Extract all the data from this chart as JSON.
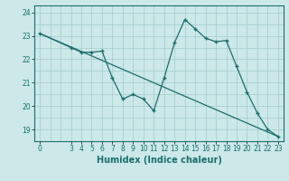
{
  "xlabel": "Humidex (Indice chaleur)",
  "ylabel": "",
  "bg_color": "#cce8e8",
  "grid_color": "#aacfcf",
  "line_color": "#1a6e6a",
  "xlim": [
    -0.5,
    23.5
  ],
  "ylim": [
    18.5,
    24.3
  ],
  "yticks": [
    19,
    20,
    21,
    22,
    23,
    24
  ],
  "xticks": [
    0,
    3,
    4,
    5,
    6,
    7,
    8,
    9,
    10,
    11,
    12,
    13,
    14,
    15,
    16,
    17,
    18,
    19,
    20,
    21,
    22,
    23
  ],
  "curve_x": [
    0,
    3,
    4,
    5,
    6,
    7,
    8,
    9,
    10,
    11,
    12,
    13,
    14,
    15,
    16,
    17,
    18,
    19,
    20,
    21,
    22,
    23
  ],
  "curve_y": [
    23.1,
    22.5,
    22.3,
    22.3,
    22.35,
    21.2,
    20.3,
    20.5,
    20.3,
    19.8,
    21.2,
    22.7,
    23.7,
    23.3,
    22.9,
    22.75,
    22.8,
    21.7,
    20.6,
    19.7,
    19.0,
    18.7
  ],
  "trend_x": [
    0,
    23
  ],
  "trend_y": [
    23.1,
    18.7
  ]
}
